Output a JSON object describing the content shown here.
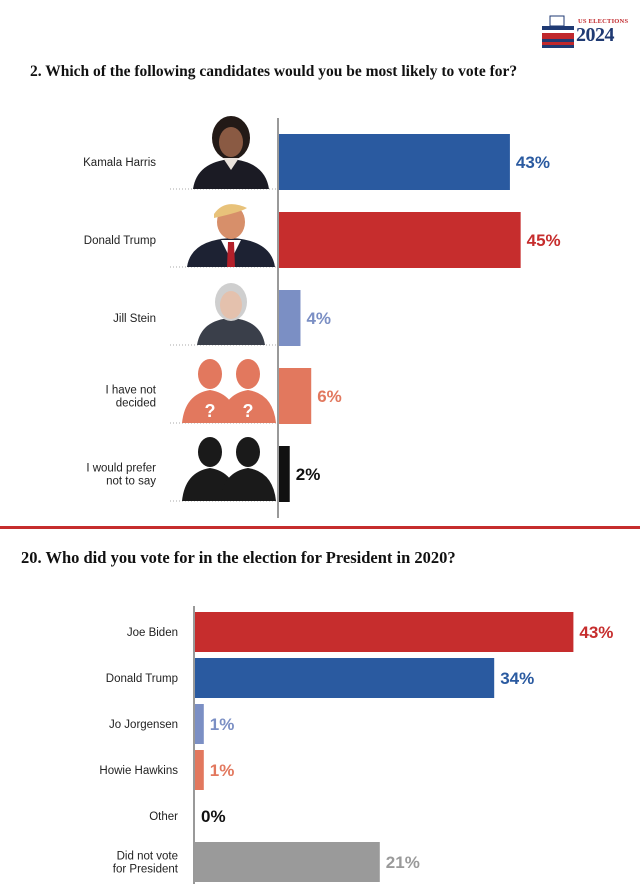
{
  "logo": {
    "top_text": "US ELECTIONS",
    "year": "2024"
  },
  "colors": {
    "blue": "#2a5aa0",
    "red": "#c62d2d",
    "lightblue": "#7b8fc4",
    "salmon": "#e2785e",
    "black": "#111111",
    "gray": "#9a9a9a"
  },
  "chart_data": [
    {
      "type": "bar",
      "title": "2. Which of the following candidates would you be most likely to vote for?",
      "categories": [
        [
          "Kamala Harris"
        ],
        [
          "Donald Trump"
        ],
        [
          "Jill Stein"
        ],
        [
          "I have not",
          "decided"
        ],
        [
          "I would prefer",
          "not to say"
        ]
      ],
      "values": [
        43,
        45,
        4,
        6,
        2
      ],
      "labels": [
        "43%",
        "45%",
        "4%",
        "6%",
        "2%"
      ],
      "colors": [
        "#2a5aa0",
        "#c62d2d",
        "#7b8fc4",
        "#e2785e",
        "#111111"
      ],
      "icons": [
        "kamala-harris-photo",
        "donald-trump-photo",
        "jill-stein-photo",
        "undecided-silhouette-icon",
        "prefer-not-silhouette-icon"
      ]
    },
    {
      "type": "bar",
      "title": "20. Who did you vote for in the election for President in 2020?",
      "categories": [
        [
          "Joe Biden"
        ],
        [
          "Donald Trump"
        ],
        [
          "Jo Jorgensen"
        ],
        [
          "Howie Hawkins"
        ],
        [
          "Other"
        ],
        [
          "Did not vote",
          "for President"
        ]
      ],
      "values": [
        43,
        34,
        1,
        1,
        0,
        21
      ],
      "labels": [
        "43%",
        "34%",
        "1%",
        "1%",
        "0%",
        "21%"
      ],
      "colors": [
        "#c62d2d",
        "#2a5aa0",
        "#7b8fc4",
        "#e2785e",
        "#111111",
        "#9a9a9a"
      ]
    }
  ]
}
